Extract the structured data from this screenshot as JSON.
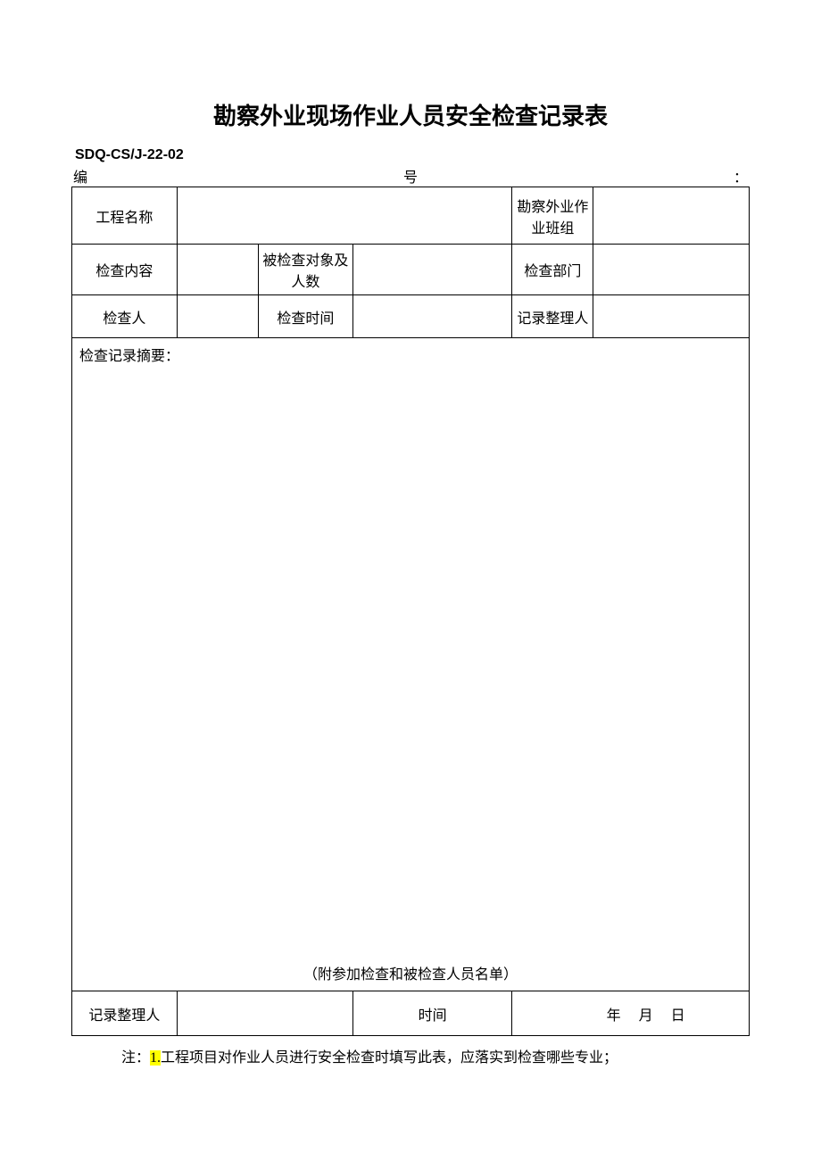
{
  "title": "勘察外业现场作业人员安全检查记录表",
  "doc_code": "SDQ-CS/J-22-02",
  "serial": {
    "left": "编",
    "center": "号",
    "right": "："
  },
  "header_rows": {
    "r1": {
      "c1": "工程名称",
      "c5": "勘察外业作业班组"
    },
    "r2": {
      "c1": "检查内容",
      "c3": "被检查对象及人数",
      "c5": "检查部门"
    },
    "r3": {
      "c1": "检查人",
      "c3": "检查时间",
      "c5": "记录整理人"
    }
  },
  "summary": {
    "label": "检查记录摘要：",
    "footer": "（附参加检查和被检查人员名单）"
  },
  "bottom_row": {
    "c1": "记录整理人",
    "c3": "时间",
    "date_year": "年",
    "date_month": "月",
    "date_day": "日"
  },
  "footnote": {
    "prefix": "注：",
    "highlighted": "1.",
    "rest": "工程项目对作业人员进行安全检查时填写此表，应落实到检查哪些专业；"
  },
  "colors": {
    "text": "#000000",
    "background": "#ffffff",
    "border": "#000000",
    "highlight": "#ffff00"
  }
}
